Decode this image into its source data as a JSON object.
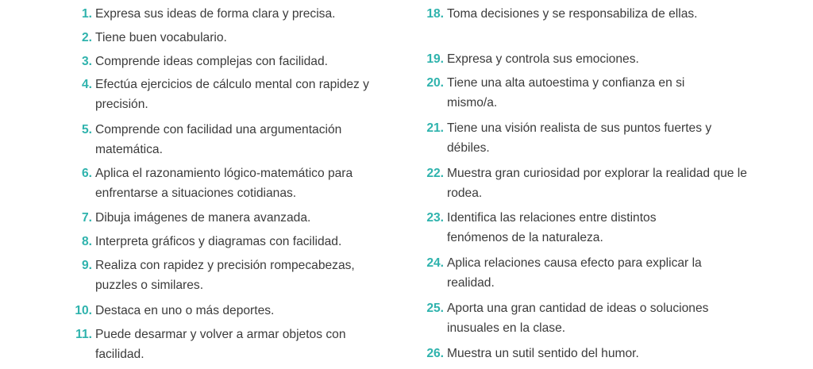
{
  "accent_color": "#2fb3ad",
  "left_items": [
    {
      "num": "1.",
      "text": "Expresa sus ideas de forma clara y precisa."
    },
    {
      "num": "2.",
      "text": "Tiene buen vocabulario."
    },
    {
      "num": "3.",
      "text": "Comprende ideas complejas con facilidad."
    },
    {
      "num": "4.",
      "text": "Efectúa ejercicios de cálculo mental con rapidez y precisión."
    },
    {
      "num": "5.",
      "text": "Comprende con facilidad una argumentación matemática."
    },
    {
      "num": "6.",
      "text": "Aplica el razonamiento lógico-matemático para enfrentarse a situaciones cotidianas."
    },
    {
      "num": "7.",
      "text": "Dibuja imágenes de manera avanzada."
    },
    {
      "num": "8.",
      "text": "Interpreta gráficos y diagramas con facilidad."
    },
    {
      "num": "9.",
      "text": "Realiza con rapidez y precisión rompecabezas, puzzles o similares."
    },
    {
      "num": "10.",
      "text": "Destaca en uno o más deportes."
    },
    {
      "num": "11.",
      "text": "Puede desarmar y volver a armar objetos con facilidad."
    }
  ],
  "right_items": [
    {
      "num": "18.",
      "text": "Toma decisiones y se responsabiliza de ellas."
    },
    {
      "num": "19.",
      "text": "Expresa y controla sus emociones."
    },
    {
      "num": "20.",
      "text": "Tiene una alta autoestima y confianza en si mismo/a."
    },
    {
      "num": "21.",
      "text": "Tiene una visión realista de sus puntos fuertes y débiles."
    },
    {
      "num": "22.",
      "text": "Muestra gran curiosidad por explorar la realidad que le rodea."
    },
    {
      "num": "23.",
      "text": "Identifica las relaciones entre distintos fenómenos de la naturaleza."
    },
    {
      "num": "24.",
      "text": "Aplica relaciones causa efecto para explicar la realidad."
    },
    {
      "num": "25.",
      "text": "Aporta una gran cantidad de ideas o soluciones inusuales en la clase."
    },
    {
      "num": "26.",
      "text": "Muestra un sutil sentido del humor."
    }
  ]
}
